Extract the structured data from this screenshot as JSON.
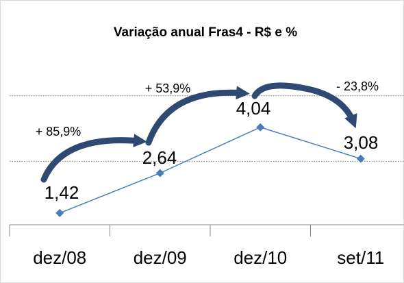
{
  "chart_data": {
    "type": "line",
    "title": "Variação anual Fras4 - R$ e %",
    "categories": [
      "dez/08",
      "dez/09",
      "dez/10",
      "set/11"
    ],
    "series": [
      {
        "color": "#4a7ebb",
        "values": [
          1.42,
          2.64,
          4.04,
          3.08
        ],
        "value_labels": [
          "1,42",
          "2,64",
          "4,04",
          "3,08"
        ]
      }
    ],
    "annotations": [
      "+ 85,9%",
      "+ 53,9%",
      "- 23,8%"
    ],
    "ylim": [
      1,
      6
    ],
    "yticks": [
      3,
      5
    ],
    "grid": true
  }
}
